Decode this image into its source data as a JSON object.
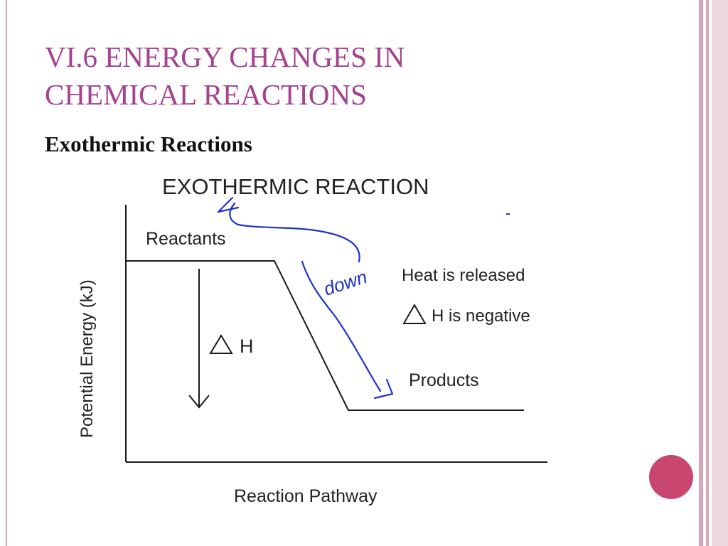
{
  "slide": {
    "title_line1": "VI.6 ENERGY CHANGES IN",
    "title_line2": "CHEMICAL REACTIONS",
    "subtitle": "Exothermic Reactions"
  },
  "diagram": {
    "title": "EXOTHERMIC REACTION",
    "y_axis_label": "Potential Energy (kJ)",
    "x_axis_label": "Reaction Pathway",
    "reactants_label": "Reactants",
    "products_label": "Products",
    "delta_h_symbol": "H",
    "heat_note": "Heat is released",
    "delta_h_note": "H is negative",
    "handwritten_note": "down"
  },
  "colors": {
    "title": "#a5428f",
    "accent_dot": "#c9466f",
    "band_light": "#efd7de",
    "band_mid": "#d9a6b6",
    "ink_blue": "#1f33c8",
    "diagram_line": "#1a1a1a"
  }
}
